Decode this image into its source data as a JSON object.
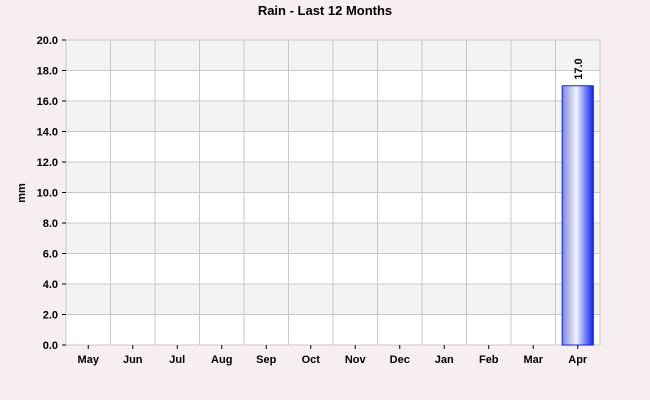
{
  "chart_data": {
    "type": "bar",
    "title": "Rain - Last 12 Months",
    "xlabel": "",
    "ylabel": "mm",
    "categories": [
      "May",
      "Jun",
      "Jul",
      "Aug",
      "Sep",
      "Oct",
      "Nov",
      "Dec",
      "Jan",
      "Feb",
      "Mar",
      "Apr"
    ],
    "values": [
      0,
      0,
      0,
      0,
      0,
      0,
      0,
      0,
      0,
      0,
      0,
      17.0
    ],
    "data_labels": [
      "",
      "",
      "",
      "",
      "",
      "",
      "",
      "",
      "",
      "",
      "",
      "17.0"
    ],
    "ylim": [
      0,
      20
    ],
    "yticks": [
      "0.0",
      "2.0",
      "4.0",
      "6.0",
      "8.0",
      "10.0",
      "12.0",
      "14.0",
      "16.0",
      "18.0",
      "20.0"
    ],
    "grid": true,
    "legend": "none",
    "colors": {
      "background": "#f7efef",
      "band_light": "#ffffff",
      "band_dark": "#f3f3f3",
      "grid": "#c8c8c8",
      "bar_edge": "#0a22ee",
      "bar_mid": "#f4f5ff",
      "bar_left": "#7f86d8"
    }
  }
}
